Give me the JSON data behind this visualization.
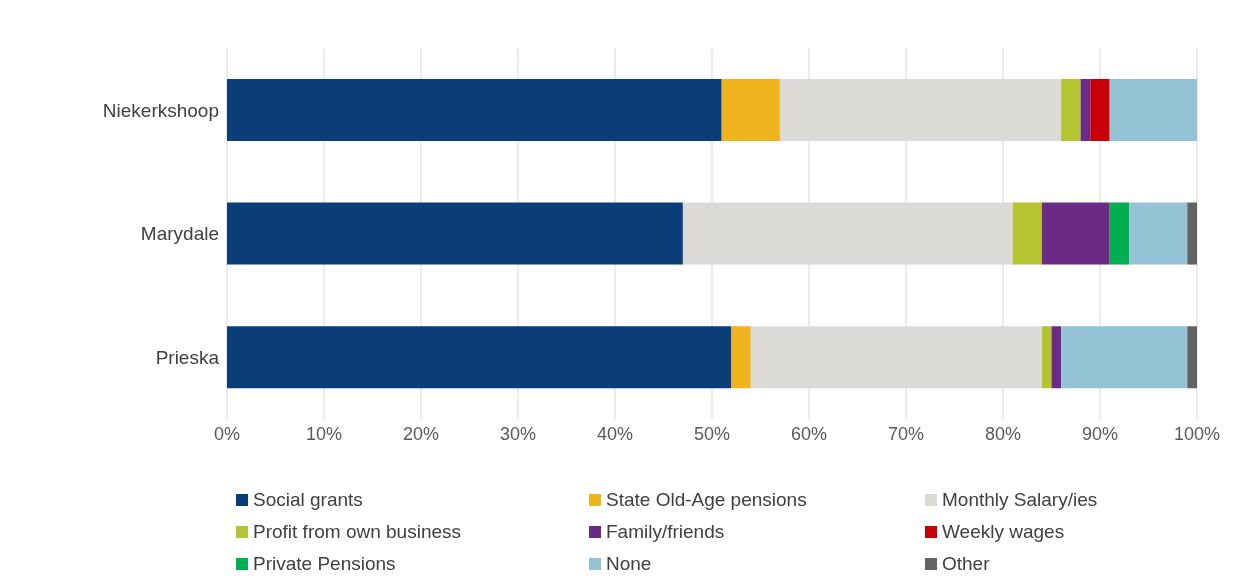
{
  "chart_data": {
    "type": "bar",
    "orientation": "horizontal",
    "stacked": true,
    "categories": [
      "Niekerkshoop",
      "Marydale",
      "Prieska"
    ],
    "series": [
      {
        "name": "Social grants",
        "color": "#0b3d78",
        "values": [
          51,
          47,
          52
        ]
      },
      {
        "name": "State Old-Age pensions",
        "color": "#efb31e",
        "values": [
          6,
          0,
          2
        ]
      },
      {
        "name": "Monthly Salary/ies",
        "color": "#dcdad6",
        "values": [
          29,
          34,
          30
        ]
      },
      {
        "name": "Profit from own business",
        "color": "#b5c431",
        "values": [
          2,
          3,
          1
        ]
      },
      {
        "name": "Family/friends",
        "color": "#6a2a86",
        "values": [
          1,
          7,
          1
        ]
      },
      {
        "name": "Weekly wages",
        "color": "#c8000a",
        "values": [
          2,
          0,
          0
        ]
      },
      {
        "name": "Private Pensions",
        "color": "#00b050",
        "values": [
          0,
          2,
          0
        ]
      },
      {
        "name": "None",
        "color": "#93c3d4",
        "values": [
          9,
          6,
          13
        ]
      },
      {
        "name": "Other",
        "color": "#636363",
        "values": [
          0,
          1,
          1
        ]
      }
    ],
    "xlim": [
      0,
      100
    ],
    "xticks": [
      {
        "value": 0,
        "label": "0%"
      },
      {
        "value": 10,
        "label": "10%"
      },
      {
        "value": 20,
        "label": "20%"
      },
      {
        "value": 30,
        "label": "30%"
      },
      {
        "value": 40,
        "label": "40%"
      },
      {
        "value": 50,
        "label": "50%"
      },
      {
        "value": 60,
        "label": "60%"
      },
      {
        "value": 70,
        "label": "70%"
      },
      {
        "value": 80,
        "label": "80%"
      },
      {
        "value": 90,
        "label": "90%"
      },
      {
        "value": 100,
        "label": "100%"
      }
    ],
    "grid": "x",
    "legend": "bottom"
  }
}
